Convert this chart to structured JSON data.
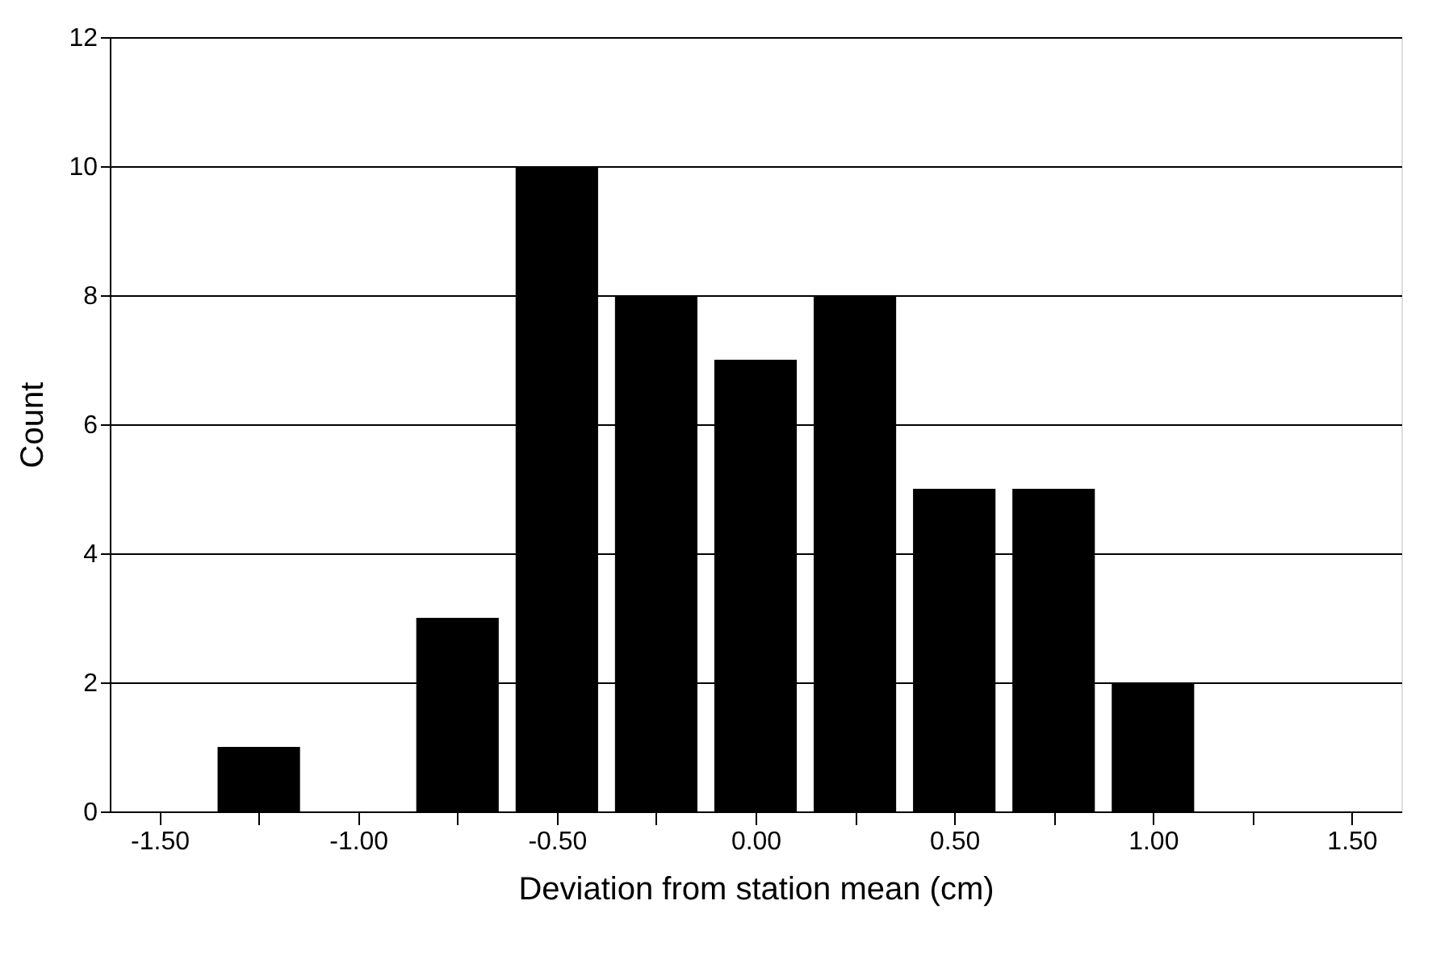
{
  "chart_data": {
    "type": "histogram",
    "xlabel": "Deviation from station mean (cm)",
    "ylabel": "Count",
    "bins": [
      -1.375,
      -1.125,
      -0.875,
      -0.625,
      -0.375,
      -0.125,
      0.125,
      0.375,
      0.625,
      0.875,
      1.125
    ],
    "values": [
      1,
      0,
      3,
      10,
      8,
      7,
      8,
      5,
      5,
      2
    ],
    "color": "#000000",
    "xlim": [
      -1.625,
      1.625
    ],
    "xticks": [
      {
        "value": -1.5,
        "label": "-1.50"
      },
      {
        "value": -1.25,
        "label": null
      },
      {
        "value": -1.0,
        "label": "-1.00"
      },
      {
        "value": -0.75,
        "label": null
      },
      {
        "value": -0.5,
        "label": "-0.50"
      },
      {
        "value": -0.25,
        "label": null
      },
      {
        "value": 0.0,
        "label": "0.00"
      },
      {
        "value": 0.25,
        "label": null
      },
      {
        "value": 0.5,
        "label": "0.50"
      },
      {
        "value": 0.75,
        "label": null
      },
      {
        "value": 1.0,
        "label": "1.00"
      },
      {
        "value": 1.25,
        "label": null
      },
      {
        "value": 1.5,
        "label": "1.50"
      }
    ],
    "ylim": [
      0,
      12
    ],
    "yticks": [
      0,
      2,
      4,
      6,
      8,
      10,
      12
    ],
    "grid": "y"
  }
}
